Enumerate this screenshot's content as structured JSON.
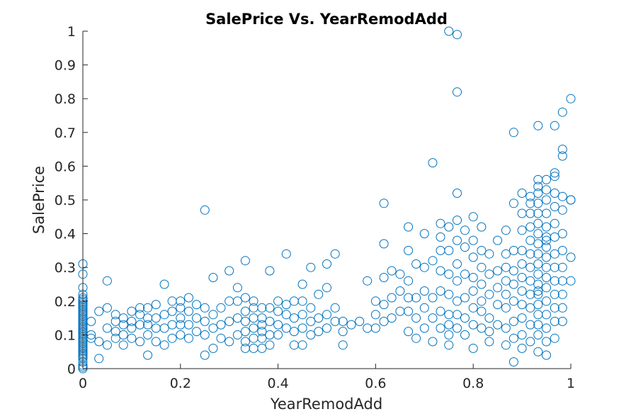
{
  "chart_data": {
    "type": "scatter",
    "title": "SalePrice Vs. YearRemodAdd",
    "xlabel": "YearRemodAdd",
    "ylabel": "SalePrice",
    "xlim": [
      0,
      1
    ],
    "ylim": [
      0,
      1
    ],
    "xticks": [
      "0",
      "0.2",
      "0.4",
      "0.6",
      "0.8",
      "1"
    ],
    "yticks": [
      "0",
      "0.1",
      "0.2",
      "0.3",
      "0.4",
      "0.5",
      "0.6",
      "0.7",
      "0.8",
      "0.9",
      "1"
    ],
    "grid": false,
    "marker": "open-circle",
    "color": "#0072BD",
    "series": [
      {
        "x": [
          0,
          0,
          0,
          0,
          0,
          0,
          0,
          0,
          0,
          0,
          0,
          0,
          0,
          0,
          0,
          0,
          0,
          0,
          0,
          0,
          0,
          0,
          0,
          0,
          0,
          0,
          0,
          0,
          0,
          0,
          0,
          0,
          0,
          0,
          0,
          0,
          0,
          0,
          0,
          0,
          0,
          0,
          0,
          0,
          0,
          0.017,
          0.017,
          0.017,
          0.033,
          0.033,
          0.033,
          0.05,
          0.05,
          0.05,
          0.05,
          0.067,
          0.067,
          0.067,
          0.067,
          0.083,
          0.083,
          0.083,
          0.083,
          0.1,
          0.1,
          0.1,
          0.1,
          0.117,
          0.117,
          0.117,
          0.117,
          0.133,
          0.133,
          0.133,
          0.133,
          0.133,
          0.15,
          0.15,
          0.15,
          0.15,
          0.167,
          0.167,
          0.167,
          0.167,
          0.183,
          0.183,
          0.183,
          0.183,
          0.2,
          0.2,
          0.2,
          0.2,
          0.2,
          0.217,
          0.217,
          0.217,
          0.217,
          0.233,
          0.233,
          0.233,
          0.25,
          0.25,
          0.25,
          0.25,
          0.25,
          0.267,
          0.267,
          0.267,
          0.267,
          0.283,
          0.283,
          0.283,
          0.3,
          0.3,
          0.3,
          0.3,
          0.317,
          0.317,
          0.317,
          0.317,
          0.333,
          0.333,
          0.333,
          0.333,
          0.333,
          0.333,
          0.333,
          0.35,
          0.35,
          0.35,
          0.35,
          0.35,
          0.35,
          0.367,
          0.367,
          0.367,
          0.367,
          0.367,
          0.367,
          0.383,
          0.383,
          0.383,
          0.383,
          0.383,
          0.4,
          0.4,
          0.4,
          0.4,
          0.417,
          0.417,
          0.417,
          0.417,
          0.433,
          0.433,
          0.433,
          0.433,
          0.45,
          0.45,
          0.45,
          0.45,
          0.45,
          0.467,
          0.467,
          0.467,
          0.467,
          0.483,
          0.483,
          0.483,
          0.5,
          0.5,
          0.5,
          0.5,
          0.517,
          0.517,
          0.517,
          0.533,
          0.533,
          0.533,
          0.55,
          0.567,
          0.583,
          0.583,
          0.6,
          0.6,
          0.6,
          0.617,
          0.617,
          0.617,
          0.617,
          0.617,
          0.633,
          0.633,
          0.633,
          0.65,
          0.65,
          0.65,
          0.667,
          0.667,
          0.667,
          0.667,
          0.667,
          0.667,
          0.683,
          0.683,
          0.683,
          0.683,
          0.7,
          0.7,
          0.7,
          0.7,
          0.7,
          0.717,
          0.717,
          0.717,
          0.717,
          0.717,
          0.733,
          0.733,
          0.733,
          0.733,
          0.733,
          0.733,
          0.733,
          0.75,
          0.75,
          0.75,
          0.75,
          0.75,
          0.75,
          0.75,
          0.75,
          0.75,
          0.767,
          0.767,
          0.767,
          0.767,
          0.767,
          0.767,
          0.767,
          0.767,
          0.767,
          0.767,
          0.783,
          0.783,
          0.783,
          0.783,
          0.783,
          0.783,
          0.8,
          0.8,
          0.8,
          0.8,
          0.8,
          0.8,
          0.8,
          0.8,
          0.817,
          0.817,
          0.817,
          0.817,
          0.817,
          0.817,
          0.817,
          0.833,
          0.833,
          0.833,
          0.833,
          0.833,
          0.833,
          0.85,
          0.85,
          0.85,
          0.85,
          0.85,
          0.867,
          0.867,
          0.867,
          0.867,
          0.867,
          0.867,
          0.867,
          0.867,
          0.883,
          0.883,
          0.883,
          0.883,
          0.883,
          0.883,
          0.883,
          0.883,
          0.883,
          0.9,
          0.9,
          0.9,
          0.9,
          0.9,
          0.9,
          0.9,
          0.9,
          0.9,
          0.9,
          0.9,
          0.917,
          0.917,
          0.917,
          0.917,
          0.917,
          0.917,
          0.917,
          0.917,
          0.917,
          0.917,
          0.917,
          0.917,
          0.933,
          0.933,
          0.933,
          0.933,
          0.933,
          0.933,
          0.933,
          0.933,
          0.933,
          0.933,
          0.933,
          0.933,
          0.933,
          0.933,
          0.933,
          0.933,
          0.933,
          0.933,
          0.933,
          0.933,
          0.95,
          0.95,
          0.95,
          0.95,
          0.95,
          0.95,
          0.95,
          0.95,
          0.95,
          0.95,
          0.95,
          0.95,
          0.95,
          0.95,
          0.95,
          0.95,
          0.95,
          0.967,
          0.967,
          0.967,
          0.967,
          0.967,
          0.967,
          0.967,
          0.967,
          0.967,
          0.967,
          0.967,
          0.967,
          0.967,
          0.967,
          0.983,
          0.983,
          0.983,
          0.983,
          0.983,
          0.983,
          0.983,
          0.983,
          0.983,
          0.983,
          0.983,
          0.983,
          1,
          1,
          1,
          1,
          1
        ],
        "y": [
          0.0,
          0.005,
          0.01,
          0.02,
          0.03,
          0.04,
          0.05,
          0.06,
          0.07,
          0.08,
          0.09,
          0.1,
          0.11,
          0.12,
          0.13,
          0.14,
          0.15,
          0.16,
          0.17,
          0.18,
          0.19,
          0.2,
          0.21,
          0.22,
          0.24,
          0.28,
          0.31,
          0.035,
          0.045,
          0.055,
          0.065,
          0.075,
          0.085,
          0.095,
          0.105,
          0.115,
          0.125,
          0.135,
          0.145,
          0.155,
          0.165,
          0.175,
          0.185,
          0.195,
          0.205,
          0.1,
          0.14,
          0.09,
          0.03,
          0.08,
          0.17,
          0.07,
          0.12,
          0.18,
          0.26,
          0.09,
          0.11,
          0.14,
          0.16,
          0.07,
          0.1,
          0.13,
          0.15,
          0.09,
          0.12,
          0.14,
          0.17,
          0.08,
          0.13,
          0.16,
          0.18,
          0.04,
          0.1,
          0.13,
          0.15,
          0.18,
          0.08,
          0.12,
          0.15,
          0.19,
          0.07,
          0.12,
          0.16,
          0.25,
          0.09,
          0.13,
          0.17,
          0.2,
          0.1,
          0.13,
          0.15,
          0.18,
          0.2,
          0.09,
          0.13,
          0.17,
          0.21,
          0.11,
          0.15,
          0.19,
          0.04,
          0.1,
          0.14,
          0.18,
          0.47,
          0.06,
          0.12,
          0.16,
          0.27,
          0.09,
          0.13,
          0.18,
          0.08,
          0.14,
          0.2,
          0.29,
          0.1,
          0.15,
          0.2,
          0.24,
          0.06,
          0.08,
          0.11,
          0.14,
          0.17,
          0.21,
          0.32,
          0.06,
          0.09,
          0.12,
          0.15,
          0.18,
          0.2,
          0.06,
          0.09,
          0.11,
          0.13,
          0.15,
          0.18,
          0.07,
          0.1,
          0.14,
          0.18,
          0.29,
          0.1,
          0.13,
          0.17,
          0.2,
          0.12,
          0.16,
          0.19,
          0.34,
          0.07,
          0.11,
          0.15,
          0.2,
          0.07,
          0.12,
          0.16,
          0.2,
          0.25,
          0.1,
          0.14,
          0.18,
          0.3,
          0.11,
          0.15,
          0.22,
          0.12,
          0.16,
          0.24,
          0.31,
          0.14,
          0.18,
          0.34,
          0.07,
          0.11,
          0.14,
          0.13,
          0.14,
          0.12,
          0.26,
          0.12,
          0.16,
          0.2,
          0.14,
          0.19,
          0.27,
          0.37,
          0.49,
          0.15,
          0.21,
          0.29,
          0.17,
          0.23,
          0.28,
          0.11,
          0.17,
          0.21,
          0.26,
          0.35,
          0.42,
          0.09,
          0.15,
          0.21,
          0.31,
          0.12,
          0.18,
          0.23,
          0.3,
          0.4,
          0.08,
          0.15,
          0.21,
          0.32,
          0.61,
          0.12,
          0.17,
          0.23,
          0.29,
          0.35,
          0.39,
          0.43,
          0.07,
          0.1,
          0.13,
          0.16,
          0.22,
          0.28,
          0.35,
          0.42,
          1.0,
          0.12,
          0.16,
          0.2,
          0.26,
          0.31,
          0.38,
          0.44,
          0.52,
          0.82,
          0.99,
          0.1,
          0.15,
          0.21,
          0.28,
          0.36,
          0.41,
          0.06,
          0.13,
          0.18,
          0.23,
          0.27,
          0.33,
          0.38,
          0.45,
          0.12,
          0.17,
          0.2,
          0.25,
          0.3,
          0.35,
          0.42,
          0.08,
          0.11,
          0.15,
          0.22,
          0.28,
          0.34,
          0.13,
          0.19,
          0.24,
          0.29,
          0.38,
          0.07,
          0.12,
          0.18,
          0.22,
          0.26,
          0.3,
          0.34,
          0.41,
          0.02,
          0.09,
          0.14,
          0.2,
          0.25,
          0.29,
          0.35,
          0.49,
          0.7,
          0.06,
          0.1,
          0.15,
          0.19,
          0.23,
          0.27,
          0.31,
          0.35,
          0.41,
          0.46,
          0.52,
          0.08,
          0.13,
          0.18,
          0.22,
          0.26,
          0.3,
          0.34,
          0.38,
          0.42,
          0.46,
          0.49,
          0.51,
          0.05,
          0.1,
          0.13,
          0.16,
          0.19,
          0.22,
          0.25,
          0.28,
          0.31,
          0.34,
          0.37,
          0.4,
          0.43,
          0.46,
          0.49,
          0.52,
          0.54,
          0.56,
          0.72,
          0.23,
          0.04,
          0.08,
          0.12,
          0.16,
          0.2,
          0.24,
          0.27,
          0.3,
          0.33,
          0.36,
          0.39,
          0.42,
          0.46,
          0.5,
          0.53,
          0.56,
          0.38,
          0.09,
          0.14,
          0.18,
          0.22,
          0.26,
          0.3,
          0.34,
          0.39,
          0.43,
          0.48,
          0.52,
          0.57,
          0.58,
          0.72,
          0.14,
          0.18,
          0.22,
          0.26,
          0.3,
          0.35,
          0.4,
          0.47,
          0.51,
          0.63,
          0.65,
          0.76,
          0.26,
          0.33,
          0.5,
          0.5,
          0.8
        ]
      }
    ]
  }
}
